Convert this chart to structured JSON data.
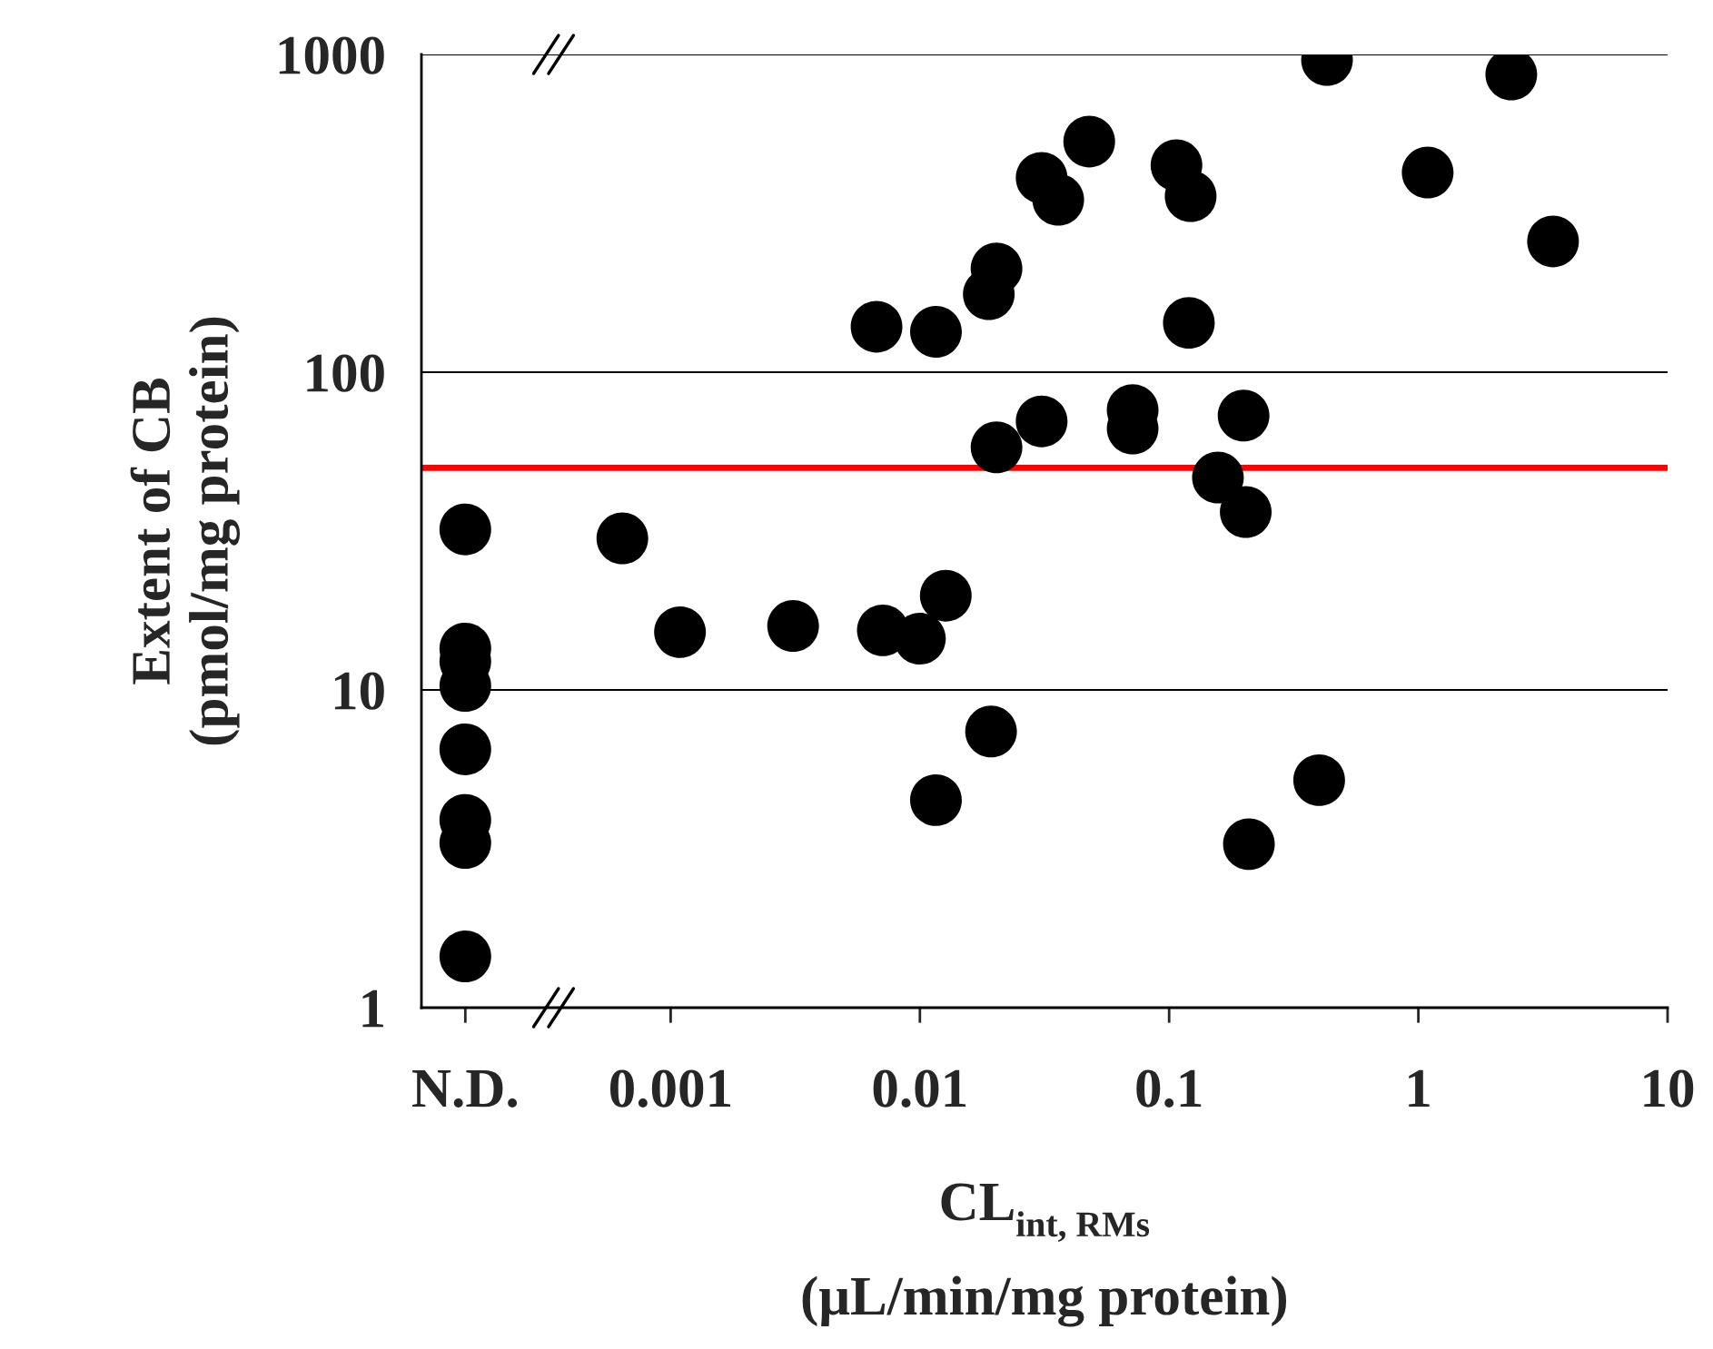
{
  "chart_data": {
    "type": "scatter",
    "xlabel": "CL$_{int, RMs}$\n(μL/min/mg protein)",
    "ylabel": "Extent of CB\n(pmol/mg protein)",
    "log": "xy",
    "grid": "y",
    "marker": "circle",
    "legend": false,
    "xlim": [
      0.0001,
      10
    ],
    "xticks": [
      {
        "value": 0.00015,
        "label": "N.D."
      },
      0.001,
      0.01,
      0.1,
      1,
      10
    ],
    "ylim": [
      1,
      1000
    ],
    "yticks": [
      1,
      10,
      100,
      1000
    ],
    "series": [
      {
        "color": "#000000",
        "x": [
          0.00015,
          0.00015,
          0.00015,
          0.00015,
          0.00015,
          0.00015,
          0.00015,
          0.00015,
          0.00064,
          0.00109,
          0.0031,
          0.0067,
          0.0071,
          0.01,
          0.0116,
          0.0116,
          0.0127,
          0.0189,
          0.0203,
          0.0193,
          0.0203,
          0.0308,
          0.0308,
          0.0359,
          0.0478,
          0.0714,
          0.0714,
          0.107,
          0.122,
          0.12,
          0.157,
          0.199,
          0.203,
          0.209,
          0.4,
          0.43,
          1.09,
          2.36,
          3.47
        ],
        "values": [
          32,
          13.5,
          12.3,
          10.3,
          6.5,
          3.9,
          3.3,
          1.45,
          30,
          15.2,
          15.9,
          139,
          15.4,
          14.5,
          134,
          4.5,
          19.8,
          176,
          212,
          7.4,
          58,
          70,
          409,
          349,
          532,
          76,
          66.5,
          448,
          358,
          143,
          46.6,
          73,
          36.3,
          3.27,
          5.2,
          961,
          425,
          865,
          258
        ]
      }
    ],
    "ref_lines": [
      {
        "axis": "y",
        "value": 50,
        "color": "#ff0000",
        "line_style": "solid"
      }
    ]
  }
}
